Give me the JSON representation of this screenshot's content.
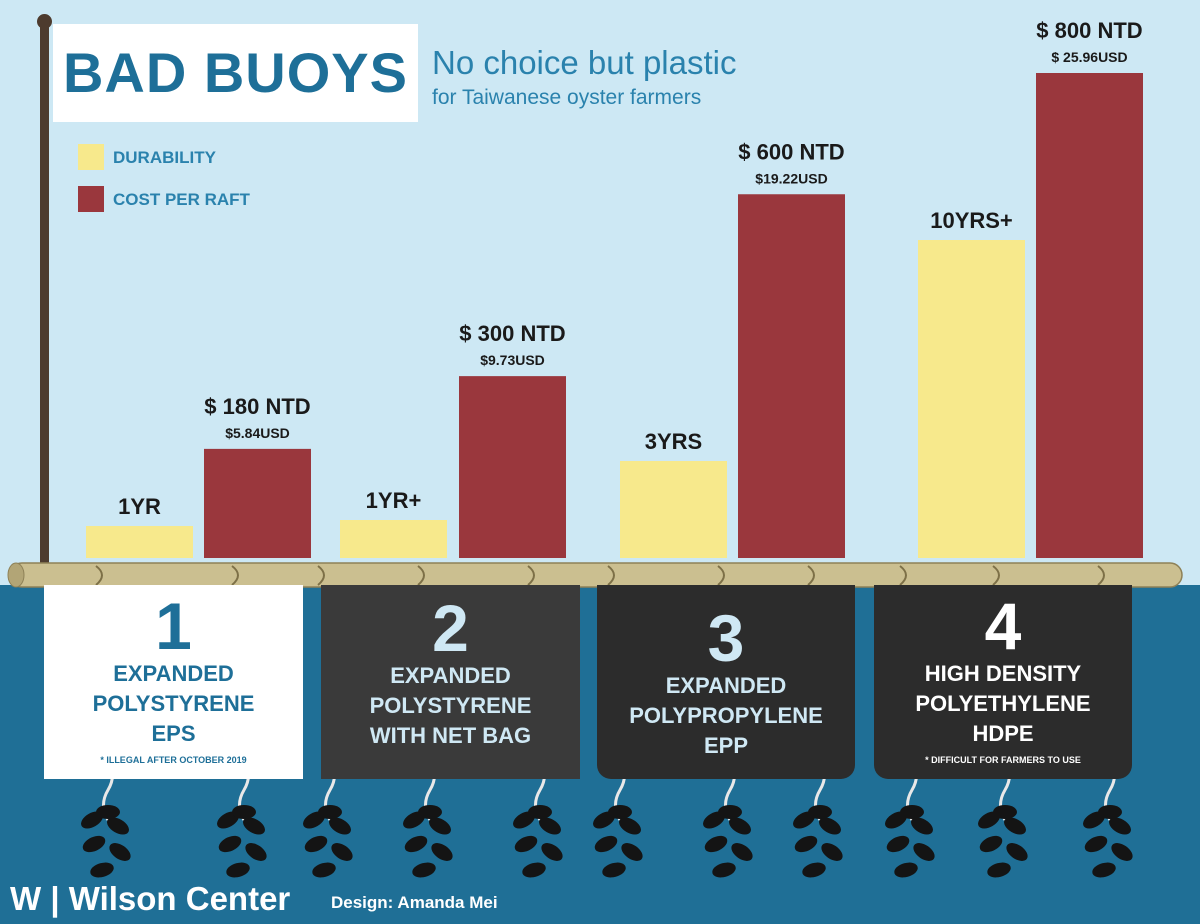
{
  "header": {
    "title": "BAD BUOYS",
    "subtitle_line1": "No choice but plastic",
    "subtitle_line2": "for Taiwanese oyster farmers"
  },
  "legend": [
    {
      "label": "DURABILITY",
      "color": "#f7e98c"
    },
    {
      "label": "COST PER RAFT",
      "color": "#9a373d"
    }
  ],
  "chart_data": {
    "type": "bar",
    "title": "BAD BUOYS",
    "subtitle": "No choice but plastic for Taiwanese oyster farmers",
    "categories": [
      "1",
      "2",
      "3",
      "4"
    ],
    "legend_position": "top-left",
    "grid": false,
    "series": [
      {
        "name": "DURABILITY",
        "color": "#f7e98c",
        "values": [
          1,
          1.2,
          3,
          10
        ],
        "labels": [
          "1YR",
          "1YR+",
          "3YRS",
          "10YRS+"
        ]
      },
      {
        "name": "COST PER RAFT",
        "color": "#9a373d",
        "values": [
          180,
          300,
          600,
          800
        ],
        "labels": [
          "$ 180 NTD",
          "$ 300 NTD",
          "$ 600 NTD",
          "$ 800 NTD"
        ],
        "sublabels": [
          "$5.84USD",
          "$9.73USD",
          "$19.22USD",
          "$ 25.96USD"
        ]
      }
    ]
  },
  "buoys": [
    {
      "number": "1",
      "name": [
        "EXPANDED",
        "POLYSTYRENE",
        "EPS"
      ],
      "note": "* ILLEGAL AFTER OCTOBER 2019"
    },
    {
      "number": "2",
      "name": [
        "EXPANDED",
        "POLYSTYRENE",
        "WITH NET BAG"
      ],
      "note": ""
    },
    {
      "number": "3",
      "name": [
        "EXPANDED",
        "POLYPROPYLENE",
        "EPP"
      ],
      "note": ""
    },
    {
      "number": "4",
      "name": [
        "HIGH DENSITY",
        "POLYETHYLENE",
        "HDPE"
      ],
      "note": "* DIFFICULT FOR FARMERS TO USE"
    }
  ],
  "footer": {
    "logo": "W | Wilson Center",
    "credit": "Design: Amanda Mei"
  },
  "colors": {
    "sky": "#cde8f4",
    "sea": "#1f6f96",
    "raft": "#cbbf90",
    "rope": "#e8e8e8",
    "box_light": "#ffffff",
    "box_dark": "#3a3a3a",
    "box_darker": "#2c2c2c",
    "text_blue": "#2a82ad"
  }
}
